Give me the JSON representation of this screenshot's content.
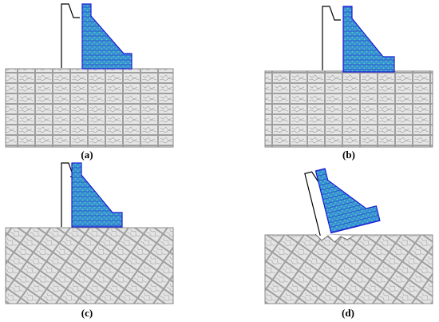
{
  "panels": [
    {
      "id": "a",
      "label": "(a)",
      "foundation": "square"
    },
    {
      "id": "b",
      "label": "(b)",
      "foundation": "square"
    },
    {
      "id": "c",
      "label": "(c)",
      "foundation": "rotated"
    },
    {
      "id": "d",
      "label": "(d)",
      "foundation": "rotated-tilted-dam"
    }
  ],
  "colors": {
    "dam_fill": "#3a8fd6",
    "dam_dots": "#34c3a6",
    "dam_border": "#1a1ad6",
    "rock_fill": "#e9e9e9",
    "rock_line": "#8a8a8a",
    "reservoir_line": "#000000"
  }
}
